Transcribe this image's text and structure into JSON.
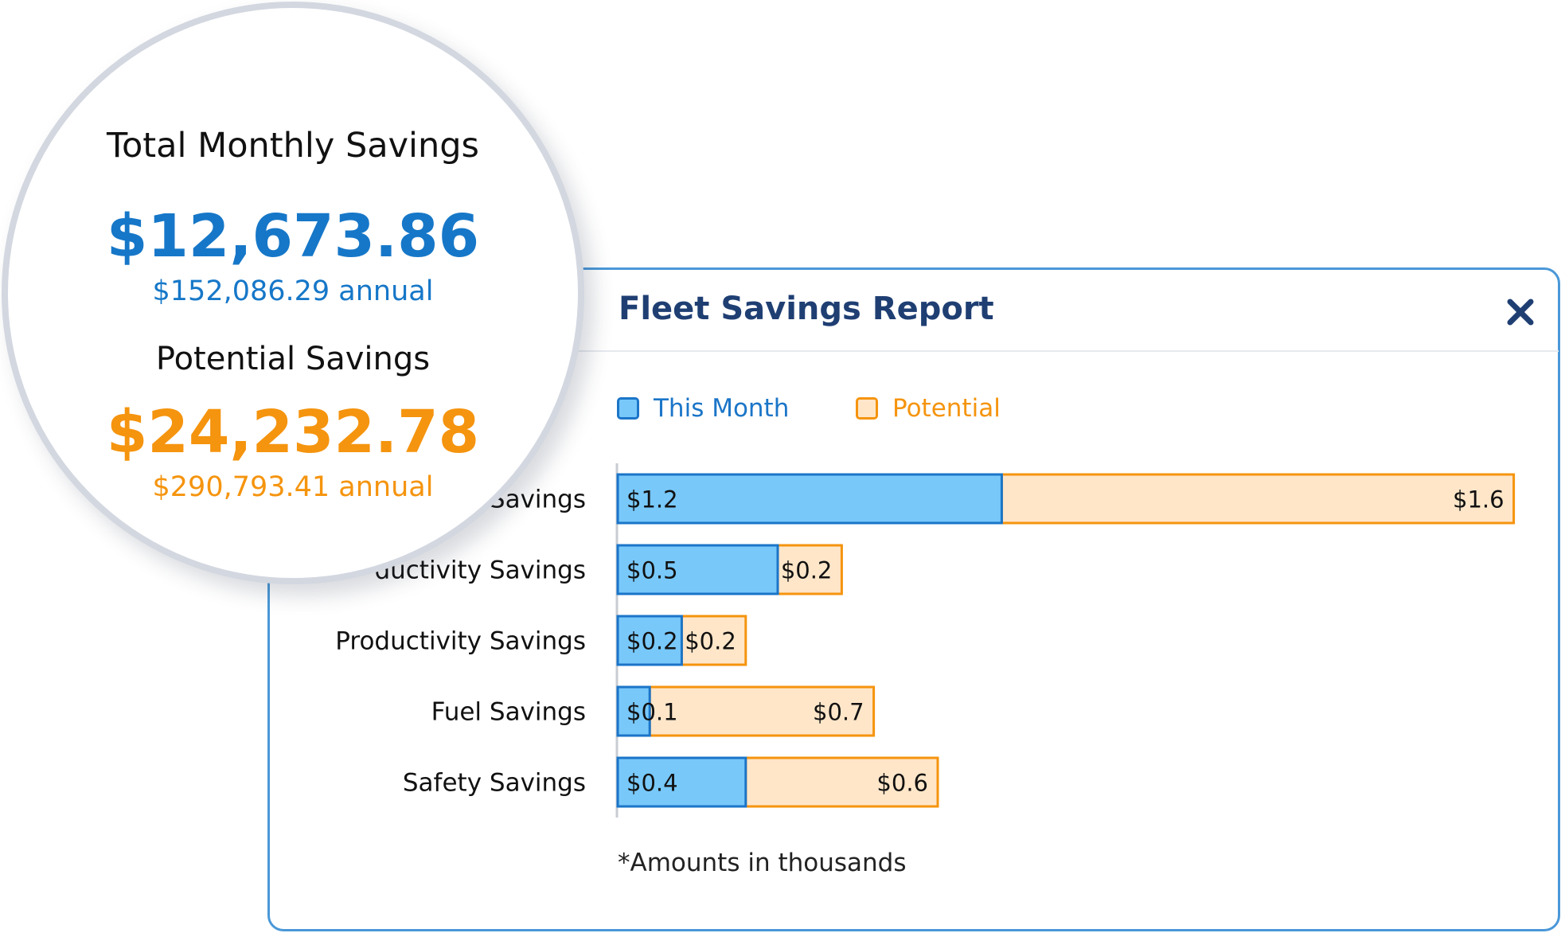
{
  "panel": {
    "title": "Fleet Savings Report"
  },
  "legend": {
    "this_month": "This Month",
    "potential": "Potential"
  },
  "colors": {
    "this_month_fill": "#78c8fa",
    "this_month_border": "#1b75c8",
    "potential_fill": "#ffe6c9",
    "potential_border": "#f5940e",
    "title": "#1f3f73"
  },
  "chart_data": {
    "type": "bar",
    "orientation": "horizontal",
    "stacked": true,
    "categories": [
      "Savings",
      "ductivity Savings",
      "Productivity Savings",
      "Fuel Savings",
      "Safety Savings"
    ],
    "series": [
      {
        "name": "This Month",
        "values": [
          1.2,
          0.5,
          0.2,
          0.1,
          0.4
        ],
        "labels": [
          "$1.2",
          "$0.5",
          "$0.2",
          "$0.1",
          "$0.4"
        ]
      },
      {
        "name": "Potential",
        "values": [
          1.6,
          0.2,
          0.2,
          0.7,
          0.6
        ],
        "labels": [
          "$1.6",
          "$0.2",
          "$0.2",
          "$0.7",
          "$0.6"
        ]
      }
    ],
    "xlim": [
      0,
      2.8
    ],
    "legend_position": "top-left",
    "grid": false
  },
  "footnote": "*Amounts in thousands",
  "magnifier": {
    "monthly_label": "Total Monthly Savings",
    "monthly_value": "$12,673.86",
    "monthly_annual": "$152,086.29 annual",
    "potential_label": "Potential Savings",
    "potential_value": "$24,232.78",
    "potential_annual": "$290,793.41 annual"
  }
}
